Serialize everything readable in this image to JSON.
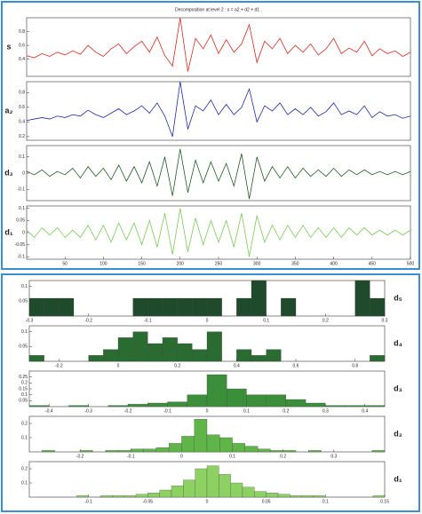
{
  "chart_data": [
    {
      "type": "line",
      "title": "Decomposition at level 2 : s = a2 + d2 + d1 .",
      "ylabel": "s",
      "color": "#d42a1e",
      "x": [
        0,
        10,
        20,
        30,
        40,
        50,
        60,
        70,
        80,
        90,
        100,
        110,
        120,
        130,
        140,
        150,
        160,
        170,
        180,
        190,
        200,
        210,
        220,
        230,
        240,
        250,
        260,
        270,
        280,
        290,
        300,
        310,
        320,
        330,
        340,
        350,
        360,
        370,
        380,
        390,
        400,
        410,
        420,
        430,
        440,
        450,
        460,
        470,
        480,
        490,
        500
      ],
      "values": [
        0.45,
        0.42,
        0.48,
        0.44,
        0.5,
        0.46,
        0.52,
        0.47,
        0.6,
        0.5,
        0.44,
        0.55,
        0.62,
        0.48,
        0.58,
        0.66,
        0.5,
        0.72,
        0.45,
        0.3,
        1.0,
        0.22,
        0.7,
        0.55,
        0.75,
        0.48,
        0.68,
        0.5,
        0.62,
        0.9,
        0.35,
        0.66,
        0.55,
        0.7,
        0.48,
        0.6,
        0.5,
        0.62,
        0.46,
        0.55,
        0.7,
        0.48,
        0.56,
        0.5,
        0.66,
        0.45,
        0.55,
        0.48,
        0.52,
        0.44,
        0.5
      ],
      "xlim": [
        0,
        500
      ],
      "ylim": [
        0.15,
        1.0
      ],
      "yticks": [
        0.4,
        0.6,
        0.8
      ]
    },
    {
      "type": "line",
      "ylabel": "a₂",
      "color": "#1d2aa0",
      "x": [
        0,
        10,
        20,
        30,
        40,
        50,
        60,
        70,
        80,
        90,
        100,
        110,
        120,
        130,
        140,
        150,
        160,
        170,
        180,
        190,
        200,
        210,
        220,
        230,
        240,
        250,
        260,
        270,
        280,
        290,
        300,
        310,
        320,
        330,
        340,
        350,
        360,
        370,
        380,
        390,
        400,
        410,
        420,
        430,
        440,
        450,
        460,
        470,
        480,
        490,
        500
      ],
      "values": [
        0.42,
        0.44,
        0.46,
        0.44,
        0.48,
        0.46,
        0.5,
        0.48,
        0.56,
        0.5,
        0.46,
        0.52,
        0.58,
        0.5,
        0.55,
        0.62,
        0.52,
        0.66,
        0.48,
        0.2,
        0.95,
        0.3,
        0.62,
        0.55,
        0.7,
        0.5,
        0.64,
        0.5,
        0.6,
        0.85,
        0.4,
        0.62,
        0.55,
        0.66,
        0.5,
        0.58,
        0.5,
        0.6,
        0.48,
        0.54,
        0.66,
        0.5,
        0.55,
        0.5,
        0.62,
        0.46,
        0.54,
        0.48,
        0.5,
        0.45,
        0.48
      ],
      "xlim": [
        0,
        500
      ],
      "ylim": [
        0.15,
        0.95
      ],
      "yticks": [
        0.2,
        0.4,
        0.6,
        0.8
      ]
    },
    {
      "type": "line",
      "ylabel": "d₂",
      "color": "#1f5a24",
      "x": [
        0,
        10,
        20,
        30,
        40,
        50,
        60,
        70,
        80,
        90,
        100,
        110,
        120,
        130,
        140,
        150,
        160,
        170,
        180,
        190,
        200,
        210,
        220,
        230,
        240,
        250,
        260,
        270,
        280,
        290,
        300,
        310,
        320,
        330,
        340,
        350,
        360,
        370,
        380,
        390,
        400,
        410,
        420,
        430,
        440,
        450,
        460,
        470,
        480,
        490,
        500
      ],
      "values": [
        0.01,
        -0.01,
        0.02,
        -0.02,
        0.01,
        -0.01,
        0.03,
        -0.03,
        0.04,
        -0.02,
        0.03,
        -0.04,
        0.05,
        -0.05,
        0.04,
        -0.06,
        0.07,
        -0.08,
        0.1,
        -0.14,
        0.15,
        -0.12,
        0.08,
        -0.06,
        0.07,
        -0.05,
        0.06,
        -0.08,
        0.12,
        -0.16,
        0.1,
        -0.05,
        0.04,
        -0.03,
        0.04,
        -0.03,
        0.03,
        -0.02,
        0.02,
        -0.02,
        0.03,
        -0.02,
        0.02,
        -0.01,
        0.02,
        -0.01,
        0.01,
        -0.01,
        0.01,
        -0.01,
        0.01
      ],
      "xlim": [
        0,
        500
      ],
      "ylim": [
        -0.17,
        0.17
      ],
      "yticks": [
        -0.1,
        0,
        0.1
      ]
    },
    {
      "type": "line",
      "ylabel": "d₁",
      "color": "#7cc85a",
      "x": [
        0,
        10,
        20,
        30,
        40,
        50,
        60,
        70,
        80,
        90,
        100,
        110,
        120,
        130,
        140,
        150,
        160,
        170,
        180,
        190,
        200,
        210,
        220,
        230,
        240,
        250,
        260,
        270,
        280,
        290,
        300,
        310,
        320,
        330,
        340,
        350,
        360,
        370,
        380,
        390,
        400,
        410,
        420,
        430,
        440,
        450,
        460,
        470,
        480,
        490,
        500
      ],
      "values": [
        0.01,
        -0.02,
        0.02,
        -0.01,
        0.02,
        -0.02,
        0.01,
        -0.02,
        0.03,
        -0.03,
        0.03,
        -0.04,
        0.04,
        -0.03,
        0.04,
        -0.05,
        0.05,
        -0.06,
        0.08,
        -0.09,
        0.1,
        -0.08,
        0.06,
        -0.05,
        0.05,
        -0.04,
        0.05,
        -0.06,
        0.08,
        -0.1,
        0.07,
        -0.04,
        0.03,
        -0.03,
        0.03,
        -0.02,
        0.03,
        -0.02,
        0.02,
        -0.02,
        0.02,
        -0.02,
        0.02,
        -0.01,
        0.02,
        -0.01,
        0.01,
        -0.01,
        0.01,
        -0.01,
        0.01
      ],
      "xlim": [
        0,
        500
      ],
      "ylim": [
        -0.11,
        0.11
      ],
      "yticks": [
        -0.1,
        -0.05,
        0,
        0.05,
        0.1
      ],
      "xticks": [
        50,
        100,
        150,
        200,
        250,
        300,
        350,
        400,
        450,
        500
      ]
    },
    {
      "type": "histogram",
      "label": "d₅",
      "color": "#1f4a2c",
      "bins": [
        -0.3,
        -0.275,
        -0.25,
        -0.225,
        -0.2,
        -0.175,
        -0.15,
        -0.125,
        -0.1,
        -0.075,
        -0.05,
        -0.025,
        0,
        0.025,
        0.05,
        0.075,
        0.1,
        0.125,
        0.15,
        0.175,
        0.2,
        0.225,
        0.25,
        0.275,
        0.3
      ],
      "counts": [
        0.06,
        0.06,
        0.06,
        0,
        0,
        0,
        0,
        0.06,
        0.06,
        0.06,
        0.06,
        0.06,
        0.06,
        0,
        0.06,
        0.12,
        0,
        0.06,
        0,
        0,
        0,
        0,
        0.12,
        0.06
      ],
      "xlim": [
        -0.3,
        0.3
      ],
      "xticks": [
        -0.3,
        -0.2,
        -0.1,
        0,
        0.1,
        0.2,
        0.3
      ],
      "ylim": [
        0,
        0.12
      ],
      "yticks": [
        0.05,
        0.1
      ]
    },
    {
      "type": "histogram",
      "label": "d₄",
      "color": "#2a6b32",
      "bins": [
        -0.3,
        -0.25,
        -0.2,
        -0.15,
        -0.1,
        -0.05,
        0,
        0.05,
        0.1,
        0.15,
        0.2,
        0.25,
        0.3,
        0.35,
        0.4,
        0.45,
        0.5,
        0.55,
        0.6,
        0.65,
        0.7,
        0.75,
        0.8,
        0.85,
        0.9
      ],
      "counts": [
        0.02,
        0,
        0,
        0,
        0.02,
        0.04,
        0.08,
        0.1,
        0.06,
        0.08,
        0.06,
        0.04,
        0.1,
        0,
        0.04,
        0.02,
        0.04,
        0,
        0,
        0,
        0,
        0,
        0,
        0.02
      ],
      "xlim": [
        -0.3,
        0.9
      ],
      "xticks": [
        -0.2,
        0,
        0.2,
        0.4,
        0.6,
        0.8
      ],
      "ylim": [
        0,
        0.12
      ],
      "yticks": [
        0.05,
        0.1
      ]
    },
    {
      "type": "histogram",
      "label": "d₃",
      "color": "#3b8f3a",
      "bins": [
        -0.45,
        -0.4,
        -0.35,
        -0.3,
        -0.25,
        -0.2,
        -0.15,
        -0.1,
        -0.05,
        0,
        0.05,
        0.1,
        0.15,
        0.2,
        0.25,
        0.3,
        0.35,
        0.4,
        0.45
      ],
      "counts": [
        0.01,
        0,
        0.01,
        0,
        0.01,
        0.02,
        0.03,
        0.04,
        0.1,
        0.27,
        0.15,
        0.1,
        0.1,
        0.06,
        0.03,
        0.01,
        0.01,
        0.01
      ],
      "xlim": [
        -0.45,
        0.45
      ],
      "xticks": [
        -0.4,
        -0.3,
        -0.2,
        -0.1,
        0,
        0.1,
        0.2,
        0.3,
        0.4
      ],
      "ylim": [
        0,
        0.3
      ],
      "yticks": [
        0.05,
        0.1,
        0.15,
        0.2,
        0.25
      ]
    },
    {
      "type": "histogram",
      "label": "d₂",
      "color": "#5fb548",
      "bins": [
        -0.3,
        -0.275,
        -0.25,
        -0.225,
        -0.2,
        -0.175,
        -0.15,
        -0.125,
        -0.1,
        -0.075,
        -0.05,
        -0.025,
        0,
        0.025,
        0.05,
        0.075,
        0.1,
        0.125,
        0.15,
        0.175,
        0.2,
        0.225,
        0.25,
        0.275,
        0.3,
        0.325,
        0.35,
        0.375,
        0.4
      ],
      "counts": [
        0,
        0.01,
        0,
        0,
        0.01,
        0,
        0.01,
        0.01,
        0.02,
        0.02,
        0.03,
        0.06,
        0.11,
        0.23,
        0.12,
        0.1,
        0.06,
        0.04,
        0.02,
        0.01,
        0.01,
        0,
        0.01,
        0,
        0,
        0,
        0,
        0.01
      ],
      "xlim": [
        -0.3,
        0.4
      ],
      "xticks": [
        -0.2,
        -0.1,
        0,
        0.1,
        0.2,
        0.3
      ],
      "ylim": [
        0,
        0.25
      ],
      "yticks": [
        0.1,
        0.2
      ]
    },
    {
      "type": "histogram",
      "label": "d₁",
      "color": "#8ed163",
      "bins": [
        -0.15,
        -0.14,
        -0.13,
        -0.12,
        -0.11,
        -0.1,
        -0.09,
        -0.08,
        -0.07,
        -0.06,
        -0.05,
        -0.04,
        -0.03,
        -0.02,
        -0.01,
        0,
        0.01,
        0.02,
        0.03,
        0.04,
        0.05,
        0.06,
        0.07,
        0.08,
        0.09,
        0.1,
        0.11,
        0.12,
        0.13,
        0.14,
        0.15
      ],
      "counts": [
        0,
        0,
        0,
        0,
        0.01,
        0,
        0.01,
        0.01,
        0.01,
        0.02,
        0.03,
        0.05,
        0.08,
        0.12,
        0.2,
        0.22,
        0.16,
        0.1,
        0.07,
        0.04,
        0.03,
        0.02,
        0.01,
        0.01,
        0.01,
        0,
        0,
        0,
        0,
        0.01
      ],
      "xlim": [
        -0.15,
        0.15
      ],
      "xticks": [
        -0.1,
        -0.05,
        0,
        0.05,
        0.1,
        0.15
      ],
      "ylim": [
        0,
        0.25
      ],
      "yticks": [
        0.1,
        0.2
      ]
    }
  ]
}
